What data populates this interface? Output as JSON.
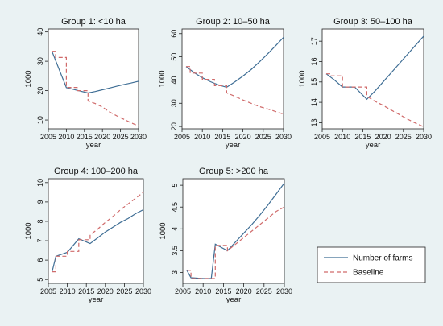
{
  "colors": {
    "background": "#eaf2f3",
    "plot_area": "#ffffff",
    "farms_line": "#3f6e95",
    "baseline_line": "#d06b6b"
  },
  "legend": {
    "position": "bottom-right",
    "items": [
      "Number of farms",
      "Baseline"
    ]
  },
  "chart_data": [
    {
      "type": "line",
      "title": "Group 1: <10 ha",
      "xlabel": "year",
      "ylabel": "1000",
      "xlim": [
        2005,
        2030
      ],
      "ylim": [
        7,
        41
      ],
      "xticks": [
        2005,
        2010,
        2015,
        2020,
        2025,
        2030
      ],
      "yticks": [
        10,
        20,
        30,
        40
      ],
      "series": [
        {
          "name": "Number of farms",
          "style": "solid",
          "points": [
            [
              2006,
              33.4
            ],
            [
              2010,
              21.0
            ],
            [
              2012,
              20.4
            ],
            [
              2014,
              19.8
            ],
            [
              2016,
              19.2
            ],
            [
              2018,
              19.7
            ],
            [
              2020,
              20.3
            ],
            [
              2022,
              20.9
            ],
            [
              2024,
              21.5
            ],
            [
              2026,
              22.1
            ],
            [
              2028,
              22.6
            ],
            [
              2030,
              23.2
            ]
          ]
        },
        {
          "name": "Baseline",
          "style": "dashed",
          "points": [
            [
              2006,
              33.4
            ],
            [
              2007,
              33.4
            ],
            [
              2007,
              31.3
            ],
            [
              2010,
              31.3
            ],
            [
              2010,
              21.1
            ],
            [
              2013,
              21.1
            ],
            [
              2013,
              20.0
            ],
            [
              2016,
              20.0
            ],
            [
              2016,
              16.5
            ],
            [
              2018,
              15.6
            ],
            [
              2020,
              14.4
            ],
            [
              2022,
              12.7
            ],
            [
              2024,
              11.4
            ],
            [
              2026,
              10.2
            ],
            [
              2028,
              9.0
            ],
            [
              2030,
              8.0
            ]
          ]
        }
      ]
    },
    {
      "type": "line",
      "title": "Group 2: 10–50 ha",
      "xlabel": "year",
      "ylabel": "1000",
      "xlim": [
        2005,
        2030
      ],
      "ylim": [
        19,
        62
      ],
      "xticks": [
        2005,
        2010,
        2015,
        2020,
        2025,
        2030
      ],
      "yticks": [
        20,
        30,
        40,
        50,
        60
      ],
      "series": [
        {
          "name": "Number of farms",
          "style": "solid",
          "points": [
            [
              2006,
              45.8
            ],
            [
              2008,
              43.2
            ],
            [
              2010,
              41.0
            ],
            [
              2012,
              39.3
            ],
            [
              2014,
              37.9
            ],
            [
              2016,
              36.9
            ],
            [
              2018,
              39.2
            ],
            [
              2020,
              41.7
            ],
            [
              2022,
              44.5
            ],
            [
              2024,
              47.7
            ],
            [
              2026,
              51.1
            ],
            [
              2028,
              54.7
            ],
            [
              2030,
              58.4
            ]
          ]
        },
        {
          "name": "Baseline",
          "style": "dashed",
          "points": [
            [
              2006,
              45.8
            ],
            [
              2007,
              45.8
            ],
            [
              2007,
              43.0
            ],
            [
              2010,
              43.0
            ],
            [
              2010,
              40.3
            ],
            [
              2013,
              40.3
            ],
            [
              2013,
              37.6
            ],
            [
              2016,
              37.6
            ],
            [
              2016,
              34.5
            ],
            [
              2018,
              33.0
            ],
            [
              2020,
              31.4
            ],
            [
              2022,
              30.0
            ],
            [
              2024,
              28.6
            ],
            [
              2026,
              27.6
            ],
            [
              2028,
              26.5
            ],
            [
              2030,
              25.3
            ]
          ]
        }
      ]
    },
    {
      "type": "line",
      "title": "Group 3: 50–100 ha",
      "xlabel": "year",
      "ylabel": "1000",
      "xlim": [
        2005,
        2030
      ],
      "ylim": [
        12.7,
        17.6
      ],
      "xticks": [
        2005,
        2010,
        2015,
        2020,
        2025,
        2030
      ],
      "yticks": [
        13,
        14,
        15,
        16,
        17
      ],
      "series": [
        {
          "name": "Number of farms",
          "style": "solid",
          "points": [
            [
              2006,
              15.4
            ],
            [
              2008,
              15.1
            ],
            [
              2010,
              14.75
            ],
            [
              2013,
              14.75
            ],
            [
              2016,
              14.15
            ],
            [
              2018,
              14.55
            ],
            [
              2020,
              15.0
            ],
            [
              2022,
              15.45
            ],
            [
              2024,
              15.9
            ],
            [
              2026,
              16.35
            ],
            [
              2028,
              16.8
            ],
            [
              2030,
              17.25
            ]
          ]
        },
        {
          "name": "Baseline",
          "style": "dashed",
          "points": [
            [
              2006,
              15.4
            ],
            [
              2007,
              15.4
            ],
            [
              2007,
              15.3
            ],
            [
              2010,
              15.3
            ],
            [
              2010,
              14.75
            ],
            [
              2013,
              14.75
            ],
            [
              2013,
              14.75
            ],
            [
              2016,
              14.75
            ],
            [
              2016,
              14.3
            ],
            [
              2018,
              14.05
            ],
            [
              2020,
              13.85
            ],
            [
              2022,
              13.62
            ],
            [
              2024,
              13.4
            ],
            [
              2026,
              13.18
            ],
            [
              2028,
              12.98
            ],
            [
              2030,
              12.8
            ]
          ]
        }
      ]
    },
    {
      "type": "line",
      "title": "Group 4: 100–200 ha",
      "xlabel": "year",
      "ylabel": "1000",
      "xlim": [
        2005,
        2030
      ],
      "ylim": [
        4.8,
        10.2
      ],
      "xticks": [
        2005,
        2010,
        2015,
        2020,
        2025,
        2030
      ],
      "yticks": [
        5,
        6,
        7,
        8,
        9,
        10
      ],
      "series": [
        {
          "name": "Number of farms",
          "style": "solid",
          "points": [
            [
              2006,
              5.4
            ],
            [
              2007,
              6.2
            ],
            [
              2010,
              6.4
            ],
            [
              2013,
              7.1
            ],
            [
              2016,
              6.85
            ],
            [
              2018,
              7.15
            ],
            [
              2020,
              7.45
            ],
            [
              2022,
              7.7
            ],
            [
              2024,
              7.95
            ],
            [
              2026,
              8.15
            ],
            [
              2028,
              8.4
            ],
            [
              2030,
              8.6
            ]
          ]
        },
        {
          "name": "Baseline",
          "style": "dashed",
          "points": [
            [
              2006,
              5.4
            ],
            [
              2007,
              5.4
            ],
            [
              2007,
              6.2
            ],
            [
              2010,
              6.2
            ],
            [
              2010,
              6.45
            ],
            [
              2013,
              6.45
            ],
            [
              2013,
              7.05
            ],
            [
              2016,
              7.05
            ],
            [
              2016,
              7.3
            ],
            [
              2018,
              7.6
            ],
            [
              2020,
              7.95
            ],
            [
              2022,
              8.25
            ],
            [
              2024,
              8.6
            ],
            [
              2026,
              8.9
            ],
            [
              2028,
              9.2
            ],
            [
              2030,
              9.5
            ]
          ]
        }
      ]
    },
    {
      "type": "line",
      "title": "Group 5: >200 ha",
      "xlabel": "year",
      "ylabel": "1000",
      "xlim": [
        2005,
        2030
      ],
      "ylim": [
        2.75,
        5.15
      ],
      "xticks": [
        2005,
        2010,
        2015,
        2020,
        2025,
        2030
      ],
      "yticks": [
        3,
        3.5,
        4,
        4.5,
        5
      ],
      "series": [
        {
          "name": "Number of farms",
          "style": "solid",
          "points": [
            [
              2006,
              3.05
            ],
            [
              2007,
              2.88
            ],
            [
              2010,
              2.86
            ],
            [
              2012,
              2.86
            ],
            [
              2013,
              3.65
            ],
            [
              2016,
              3.5
            ],
            [
              2018,
              3.7
            ],
            [
              2020,
              3.9
            ],
            [
              2022,
              4.1
            ],
            [
              2024,
              4.32
            ],
            [
              2026,
              4.55
            ],
            [
              2028,
              4.8
            ],
            [
              2030,
              5.05
            ]
          ]
        },
        {
          "name": "Baseline",
          "style": "dashed",
          "points": [
            [
              2006,
              3.05
            ],
            [
              2007,
              3.05
            ],
            [
              2007,
              2.86
            ],
            [
              2010,
              2.86
            ],
            [
              2010,
              2.86
            ],
            [
              2013,
              2.86
            ],
            [
              2013,
              3.62
            ],
            [
              2016,
              3.62
            ],
            [
              2016,
              3.5
            ],
            [
              2018,
              3.65
            ],
            [
              2020,
              3.8
            ],
            [
              2022,
              3.95
            ],
            [
              2024,
              4.1
            ],
            [
              2026,
              4.25
            ],
            [
              2028,
              4.4
            ],
            [
              2030,
              4.5
            ]
          ]
        }
      ]
    }
  ]
}
